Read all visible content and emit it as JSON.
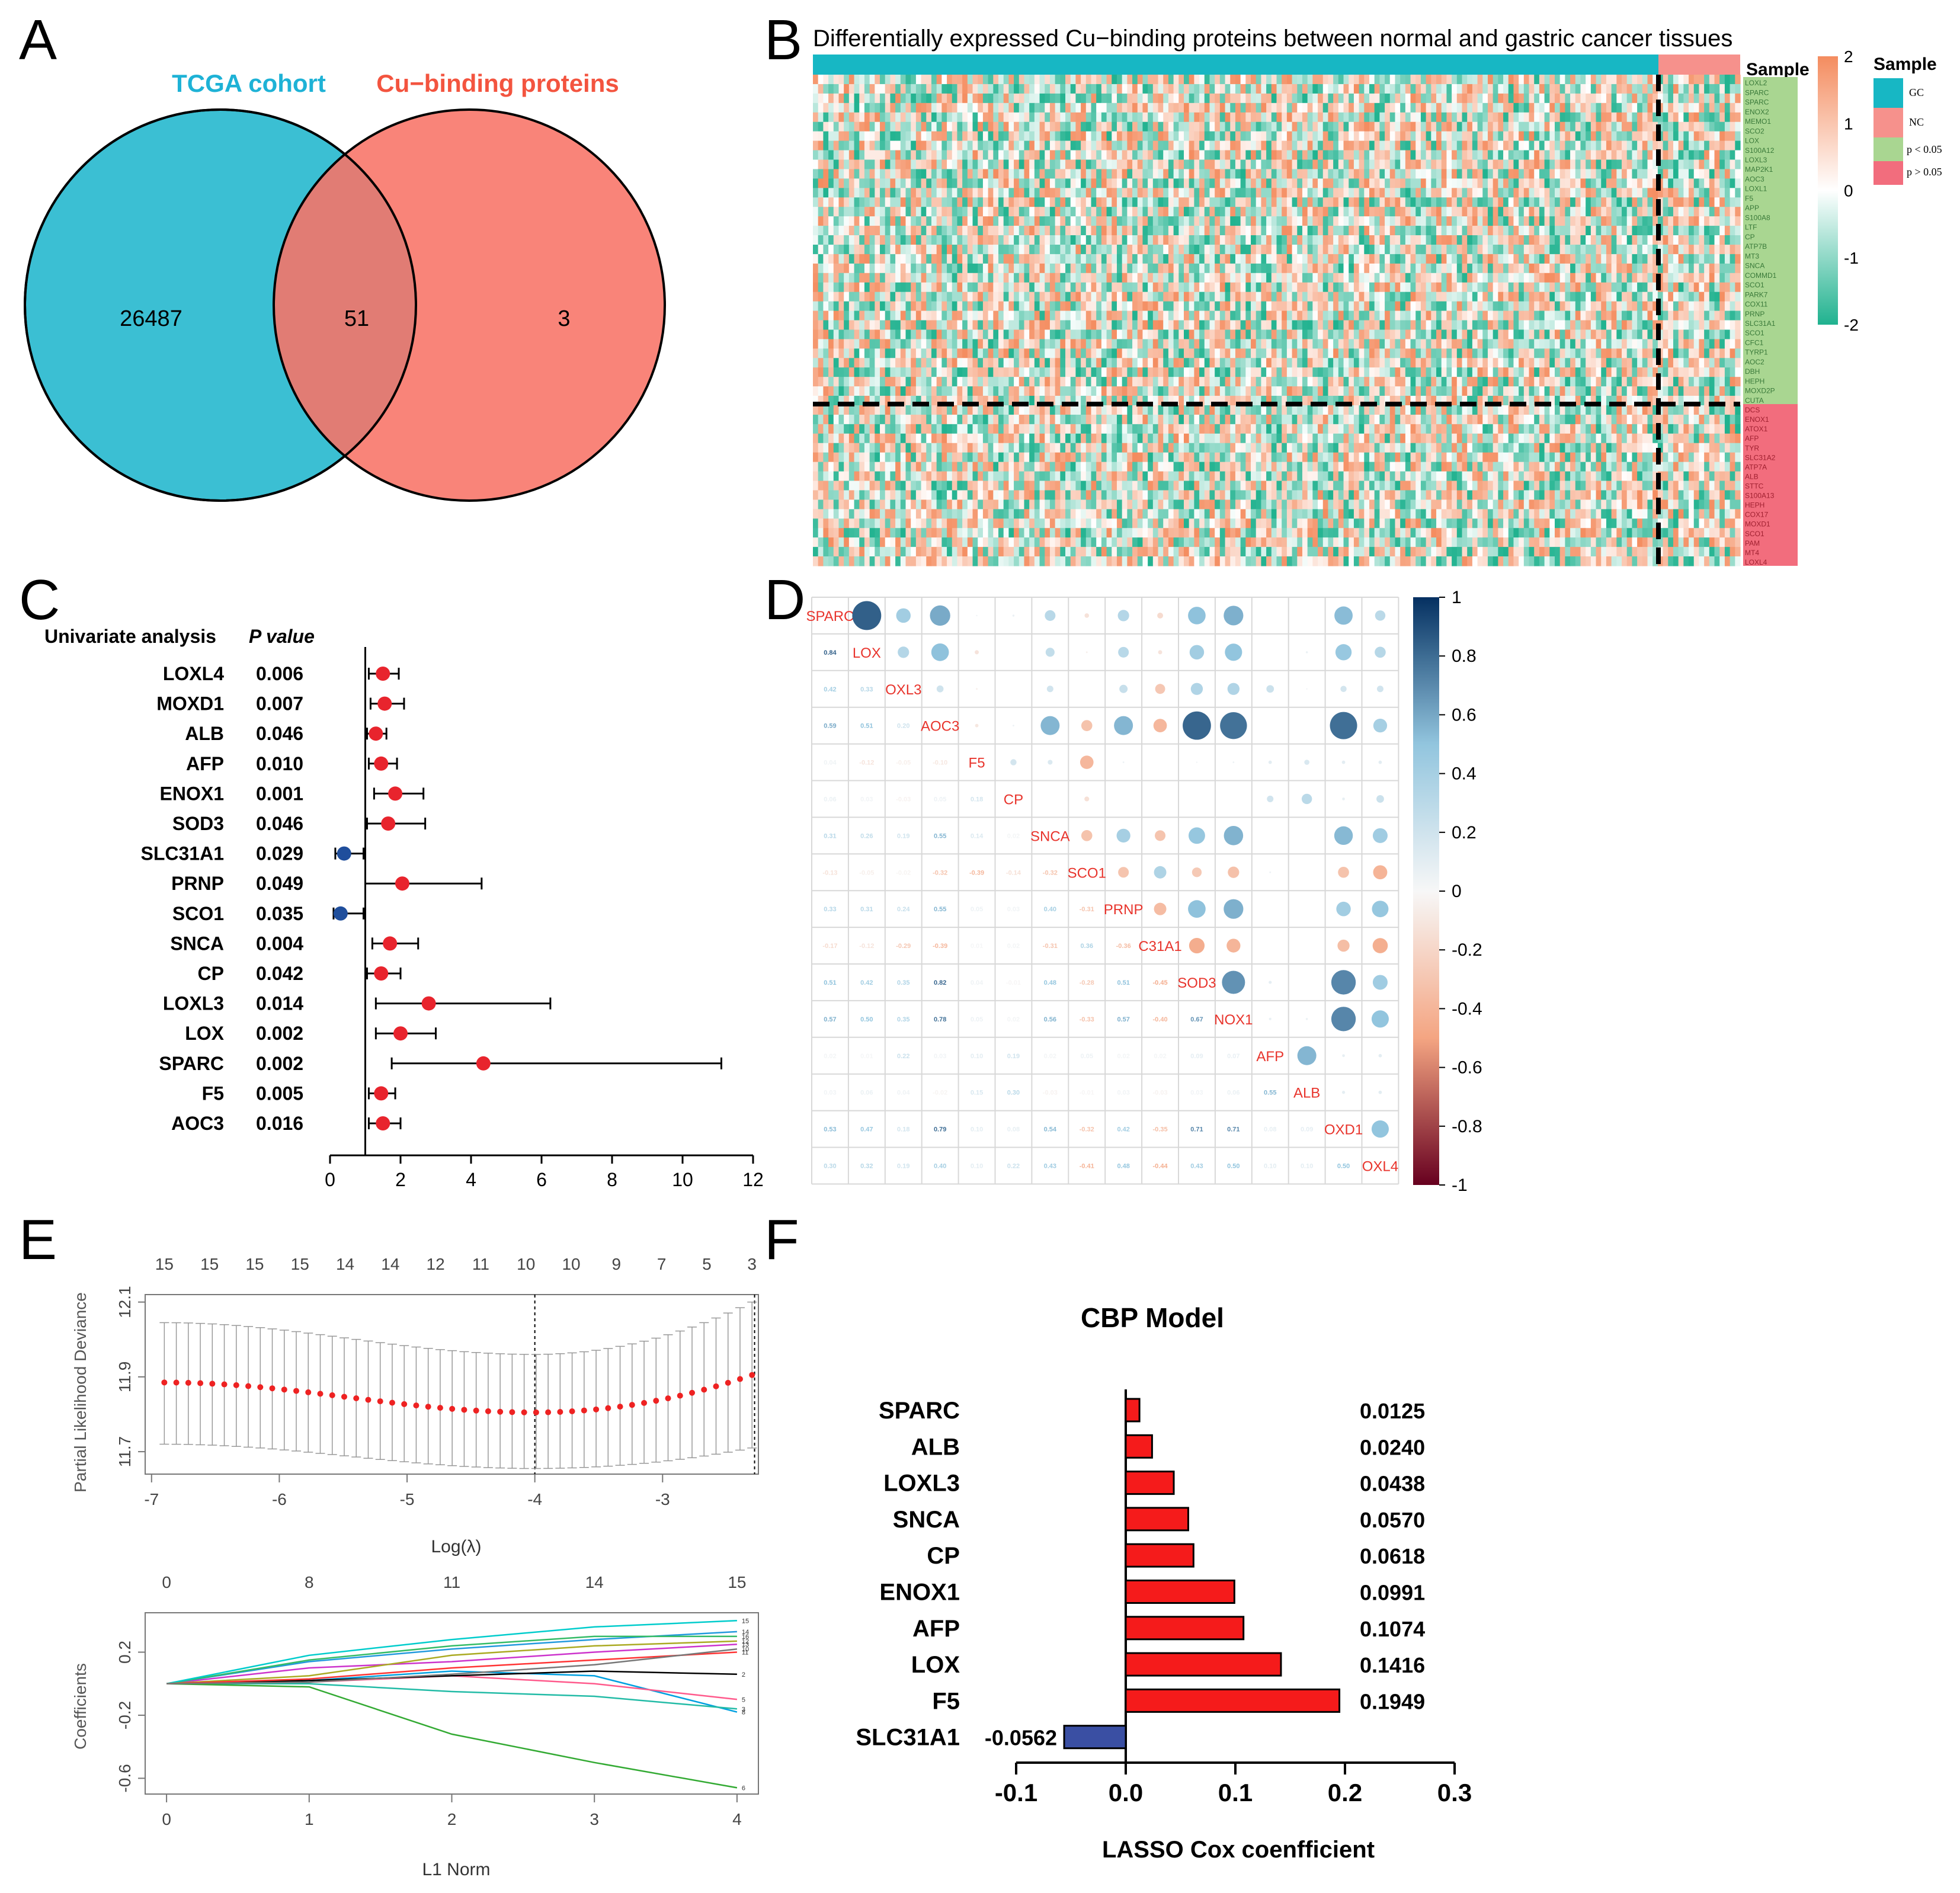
{
  "figure": {
    "panel_labels": [
      "A",
      "B",
      "C",
      "D",
      "E",
      "F"
    ]
  },
  "chart_data": [
    {
      "panel": "A",
      "type": "venn",
      "sets": [
        {
          "name": "TCGA cohort",
          "color": "#3bbfd3",
          "only": 26487
        },
        {
          "name": "Cu−binding proteins",
          "color": "#f87366",
          "only": 3
        }
      ],
      "intersection": 51
    },
    {
      "panel": "B",
      "type": "heatmap",
      "title": "Differentially expressed Cu−binding proteins between normal and gastric cancer tissues",
      "annotation_title": "Sample",
      "legend_title": "Sample",
      "legend_items": [
        {
          "label": "GC",
          "color": "#17b7c4"
        },
        {
          "label": "NC",
          "color": "#f6918c"
        },
        {
          "label": "p < 0.05",
          "color": "#a9d691"
        },
        {
          "label": "p > 0.05",
          "color": "#f26d7d"
        }
      ],
      "color_scale": {
        "ticks": [
          2,
          1,
          0,
          -1,
          -2
        ],
        "low": "#20b28f",
        "mid": "#ffffff",
        "high": "#f48c5f"
      },
      "genes_significant": [
        "LOXL2",
        "SPARC",
        "SPARC",
        "ENOX2",
        "MEMO1",
        "SCO2",
        "LOX",
        "S100A12",
        "LOXL3",
        "MAP2K1",
        "AOC3",
        "LOXL1",
        "F5",
        "APP",
        "S100A8",
        "LTF",
        "CP",
        "ATP7B",
        "MT3",
        "SNCA",
        "COMMD1",
        "SCO1",
        "PARK7",
        "COX11",
        "PRNP",
        "SLC31A1",
        "SCO1",
        "CFC1",
        "TYRP1",
        "AOC2",
        "DBH",
        "HEPH",
        "MOXD2P",
        "CUTA"
      ],
      "genes_nonsignificant": [
        "DCS",
        "ENOX1",
        "ATOX1",
        "AFP",
        "TYR",
        "SLC31A2",
        "ATP7A",
        "ALB",
        "STTC",
        "S100A13",
        "HEPH",
        "COX17",
        "MOXD1",
        "SCO1",
        "PAM",
        "MT4",
        "LOXL4"
      ]
    },
    {
      "panel": "C",
      "type": "forest",
      "header_left": "Univariate analysis",
      "header_right": "P value",
      "genes": [
        "LOXL4",
        "MOXD1",
        "ALB",
        "AFP",
        "ENOX1",
        "SOD3",
        "SLC31A1",
        "PRNP",
        "SCO1",
        "SNCA",
        "CP",
        "LOXL3",
        "LOX",
        "SPARC",
        "F5",
        "AOC3"
      ],
      "p_values": [
        "0.006",
        "0.007",
        "0.046",
        "0.010",
        "0.001",
        "0.046",
        "0.029",
        "0.049",
        "0.035",
        "0.004",
        "0.042",
        "0.014",
        "0.002",
        "0.002",
        "0.005",
        "0.016"
      ],
      "hr": [
        1.5,
        1.55,
        1.3,
        1.45,
        1.85,
        1.65,
        0.4,
        2.05,
        0.3,
        1.7,
        1.45,
        2.8,
        2.0,
        4.35,
        1.45,
        1.5
      ],
      "ci_low": [
        1.1,
        1.15,
        1.05,
        1.1,
        1.25,
        1.05,
        0.15,
        1.0,
        0.1,
        1.2,
        1.05,
        1.3,
        1.3,
        1.75,
        1.1,
        1.1
      ],
      "ci_high": [
        1.95,
        2.1,
        1.6,
        1.9,
        2.65,
        2.7,
        0.95,
        4.3,
        0.95,
        2.5,
        2.0,
        6.25,
        3.0,
        11.1,
        1.85,
        2.0
      ],
      "x_ticks": [
        0,
        2,
        4,
        6,
        8,
        10,
        12
      ],
      "xlim": [
        0,
        12
      ],
      "ref_line": 1,
      "risk_color": "#e8242d",
      "protective_color": "#1f4e9c"
    },
    {
      "panel": "D",
      "type": "correlation_matrix",
      "genes": [
        "SPARC",
        "LOX",
        "LOXL3",
        "AOC3",
        "F5",
        "CP",
        "SNCA",
        "SCO1",
        "PRNP",
        "SLC31A1",
        "SOD3",
        "ENOX1",
        "AFP",
        "ALB",
        "MOXD1",
        "LOXL4"
      ],
      "diag_labels": [
        "SPARC",
        "LOX",
        "OXL3",
        "AOC3",
        "F5",
        "CP",
        "SNCA",
        "SCO1",
        "PRNP",
        "C31A1",
        "SOD3",
        "NOX1",
        "AFP",
        "ALB",
        "OXD1",
        "OXL4"
      ],
      "matrix": [
        [
          1,
          0.84,
          0.42,
          0.59,
          0.04,
          0.06,
          0.31,
          -0.13,
          0.33,
          -0.17,
          0.51,
          0.57,
          0.02,
          0.03,
          0.53,
          0.3
        ],
        [
          0.84,
          1,
          0.33,
          0.51,
          -0.12,
          0.03,
          0.26,
          -0.05,
          0.31,
          -0.12,
          0.42,
          0.5,
          0.01,
          0.06,
          0.47,
          0.32
        ],
        [
          0.42,
          0.33,
          1,
          0.2,
          -0.05,
          -0.03,
          0.19,
          -0.02,
          0.24,
          -0.29,
          0.35,
          0.35,
          0.22,
          0.04,
          0.18,
          0.19
        ],
        [
          0.59,
          0.51,
          0.2,
          1,
          -0.1,
          0.05,
          0.55,
          -0.32,
          0.55,
          -0.39,
          0.82,
          0.78,
          0.03,
          -0.02,
          0.79,
          0.4
        ],
        [
          0.04,
          -0.12,
          -0.05,
          -0.1,
          1,
          0.18,
          0.14,
          -0.39,
          0.05,
          0.01,
          0.04,
          0.05,
          0.1,
          0.15,
          0.1,
          0.1
        ],
        [
          0.06,
          0.03,
          -0.03,
          0.05,
          0.18,
          1,
          0.02,
          -0.14,
          0.03,
          0.02,
          -0.01,
          0.02,
          0.19,
          0.3,
          0.08,
          0.22
        ],
        [
          0.31,
          0.26,
          0.19,
          0.55,
          0.14,
          0.02,
          1,
          -0.32,
          0.4,
          -0.31,
          0.48,
          0.56,
          0.02,
          -0.03,
          0.54,
          0.43
        ],
        [
          -0.13,
          -0.05,
          -0.02,
          -0.32,
          -0.39,
          -0.14,
          -0.32,
          1,
          -0.31,
          0.36,
          -0.28,
          -0.33,
          0.05,
          -0.01,
          -0.32,
          -0.41
        ],
        [
          0.33,
          0.31,
          0.24,
          0.55,
          0.05,
          0.03,
          0.4,
          -0.31,
          1,
          -0.36,
          0.51,
          0.57,
          0.02,
          0.03,
          0.42,
          0.48
        ],
        [
          -0.17,
          -0.12,
          -0.29,
          -0.39,
          0.01,
          0.02,
          -0.31,
          0.36,
          -0.36,
          1,
          -0.45,
          -0.4,
          0.02,
          -0.03,
          -0.35,
          -0.44
        ],
        [
          0.51,
          0.42,
          0.35,
          0.82,
          0.04,
          -0.01,
          0.48,
          -0.28,
          0.51,
          -0.45,
          1,
          0.67,
          0.09,
          0.03,
          0.71,
          0.43
        ],
        [
          0.57,
          0.5,
          0.35,
          0.78,
          0.05,
          0.02,
          0.56,
          -0.33,
          0.57,
          -0.4,
          0.67,
          1,
          0.07,
          0.06,
          0.71,
          0.5
        ],
        [
          0.02,
          0.01,
          0.22,
          0.03,
          0.1,
          0.19,
          0.02,
          0.05,
          0.02,
          0.02,
          0.09,
          0.07,
          1,
          0.55,
          0.08,
          0.1
        ],
        [
          0.03,
          0.06,
          0.04,
          -0.02,
          0.15,
          0.3,
          -0.03,
          -0.01,
          0.03,
          -0.03,
          0.03,
          0.06,
          0.55,
          1,
          0.09,
          0.1
        ],
        [
          0.53,
          0.47,
          0.18,
          0.79,
          0.1,
          0.08,
          0.54,
          -0.32,
          0.42,
          -0.35,
          0.71,
          0.71,
          0.08,
          0.09,
          1,
          0.5
        ],
        [
          0.3,
          0.32,
          0.19,
          0.4,
          0.1,
          0.22,
          0.43,
          -0.41,
          0.48,
          -0.44,
          0.43,
          0.5,
          0.1,
          0.1,
          0.5,
          1
        ]
      ],
      "colorbar_ticks": [
        "1",
        "0.8",
        "0.6",
        "0.4",
        "0.2",
        "0",
        "-0.2",
        "-0.4",
        "-0.6",
        "-0.8",
        "-1"
      ]
    },
    {
      "panel": "E-top",
      "type": "line_errorbar",
      "xlabel": "Log(λ)",
      "ylabel": "Partial Likelihood Deviance",
      "x_ticks": [
        -7,
        -6,
        -5,
        -4,
        -3
      ],
      "y_ticks": [
        11.7,
        11.9,
        12.1
      ],
      "xlim": [
        -7.05,
        -2.25
      ],
      "ylim": [
        11.64,
        12.12
      ],
      "top_counts": [
        "15",
        "15",
        "15",
        "15",
        "14",
        "14",
        "12",
        "11",
        "10",
        "10",
        "9",
        "7",
        "5",
        "3"
      ],
      "vlines": [
        -4.0,
        -2.28
      ],
      "x_start": -6.9,
      "x_end": -2.3,
      "points": 50,
      "mean_start": 11.885,
      "mean_min": 11.805,
      "mean_end": 11.905,
      "x_min": -4.0,
      "err_low_start": 11.72,
      "err_low_min": 11.655,
      "err_low_end": 11.71,
      "err_high_start": 12.045,
      "err_high_min": 11.96,
      "err_high_end": 12.1
    },
    {
      "panel": "E-bottom",
      "type": "line",
      "xlabel": "L1 Norm",
      "ylabel": "Coefficients",
      "x_ticks": [
        0,
        1,
        2,
        3,
        4
      ],
      "y_ticks": [
        0.2,
        -0.2,
        -0.6
      ],
      "xlim": [
        -0.15,
        4.15
      ],
      "ylim": [
        -0.7,
        0.45
      ],
      "top_ticks": [
        "0",
        "8",
        "11",
        "14",
        "15"
      ],
      "top_tick_positions": [
        0,
        1,
        2,
        3,
        4
      ],
      "series": [
        {
          "color": "#00a0e0",
          "values": [
            0,
            0.02,
            0.08,
            0.05,
            -0.18
          ]
        },
        {
          "color": "#ff5a8c",
          "values": [
            0,
            0.01,
            0.05,
            0.0,
            -0.1
          ]
        },
        {
          "color": "#22bba6",
          "values": [
            0,
            0.0,
            -0.05,
            -0.08,
            -0.16
          ]
        },
        {
          "color": "#33aa33",
          "values": [
            0,
            -0.02,
            -0.32,
            -0.5,
            -0.66
          ]
        },
        {
          "color": "#000000",
          "values": [
            0,
            0.02,
            0.05,
            0.08,
            0.06
          ]
        },
        {
          "color": "#cc33cc",
          "values": [
            0,
            0.1,
            0.14,
            0.2,
            0.25
          ]
        },
        {
          "color": "#2299dd",
          "values": [
            0,
            0.14,
            0.22,
            0.28,
            0.33
          ]
        },
        {
          "color": "#33bb66",
          "values": [
            0,
            0.15,
            0.24,
            0.3,
            0.3
          ]
        },
        {
          "color": "#00cccc",
          "values": [
            0,
            0.18,
            0.28,
            0.36,
            0.4
          ]
        },
        {
          "color": "#aaaa22",
          "values": [
            0,
            0.05,
            0.18,
            0.24,
            0.27
          ]
        },
        {
          "color": "#ff3333",
          "values": [
            0,
            0.03,
            0.1,
            0.15,
            0.2
          ]
        },
        {
          "color": "#777777",
          "values": [
            0,
            0.01,
            0.06,
            0.12,
            0.22
          ]
        }
      ],
      "end_labels": [
        "8",
        "5",
        "3",
        "6",
        "2",
        "13",
        "14",
        "16",
        "15",
        "12",
        "11",
        "10"
      ]
    },
    {
      "panel": "F",
      "type": "bar",
      "orientation": "horizontal",
      "title": "CBP Model",
      "xlabel": "LASSO Cox coenfficient",
      "categories": [
        "SPARC",
        "ALB",
        "LOXL3",
        "SNCA",
        "CP",
        "ENOX1",
        "AFP",
        "LOX",
        "F5",
        "SLC31A1"
      ],
      "values": [
        0.0125,
        0.024,
        0.0438,
        0.057,
        0.0618,
        0.0991,
        0.1074,
        0.1416,
        0.1949,
        -0.0562
      ],
      "labels": [
        "0.0125",
        "0.0240",
        "0.0438",
        "0.0570",
        "0.0618",
        "0.0991",
        "0.1074",
        "0.1416",
        "0.1949",
        "-0.0562"
      ],
      "x_ticks": [
        "-0.1",
        "0.0",
        "0.1",
        "0.2",
        "0.3"
      ],
      "xlim": [
        -0.1,
        0.3
      ],
      "positive_color": "#f51b1b",
      "negative_color": "#3a4fa3"
    }
  ]
}
